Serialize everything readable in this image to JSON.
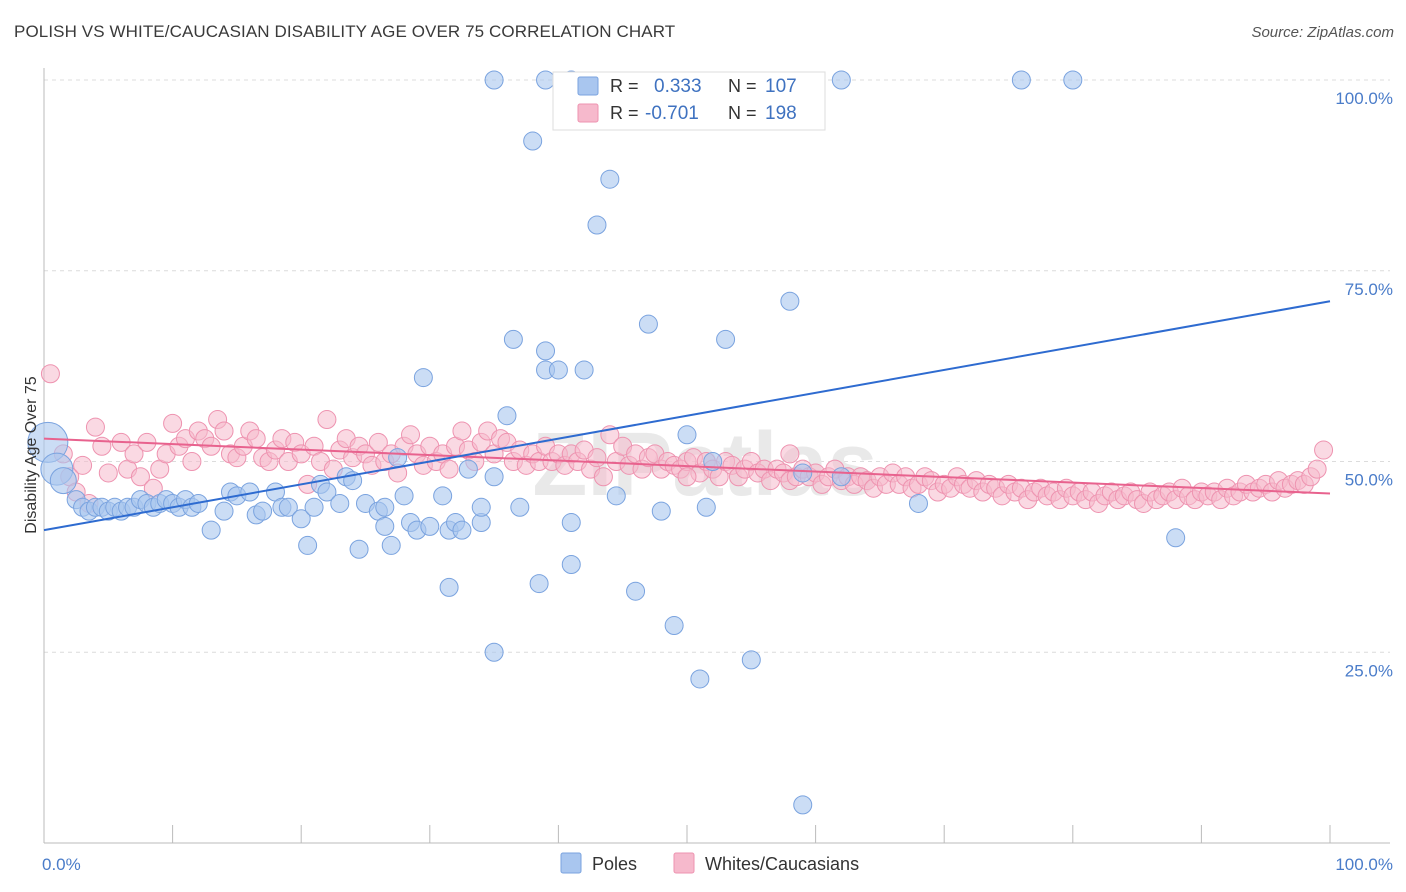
{
  "title": "POLISH VS WHITE/CAUCASIAN DISABILITY AGE OVER 75 CORRELATION CHART",
  "source": "Source: ZipAtlas.com",
  "watermark": "ZIPatlas",
  "colors": {
    "poles_fill": "#a9c6ef",
    "poles_stroke": "#7aa3df",
    "poles_line": "#2e6bd0",
    "whites_fill": "#f6b9cc",
    "whites_stroke": "#ee93b0",
    "whites_line": "#e8628e",
    "tick_text": "#4a7cc9",
    "grid": "#dcdcdc"
  },
  "legend": {
    "rows": [
      {
        "r_label": "R =",
        "r_value": "0.333",
        "n_label": "N =",
        "n_value": "107"
      },
      {
        "r_label": "R =",
        "r_value": "-0.701",
        "n_label": "N =",
        "n_value": "198"
      }
    ]
  },
  "chart_data": {
    "type": "scatter",
    "title": "POLISH VS WHITE/CAUCASIAN DISABILITY AGE OVER 75 CORRELATION CHART",
    "xlabel": "",
    "ylabel": "Disability Age Over 75",
    "xlim": [
      0,
      100
    ],
    "ylim": [
      0,
      100
    ],
    "x_tick_labels": [
      "0.0%",
      "100.0%"
    ],
    "y_tick_labels": [
      "100.0%",
      "75.0%",
      "50.0%",
      "25.0%"
    ],
    "y_ticks": [
      100,
      75,
      50,
      25
    ],
    "grid": true,
    "legend_position": "top-center",
    "series": [
      {
        "name": "Poles",
        "R": 0.333,
        "N": 107,
        "trend": {
          "x": [
            0,
            100
          ],
          "y": [
            41.0,
            71.0
          ]
        },
        "points": [
          [
            0.3,
            52.5
          ],
          [
            1,
            49
          ],
          [
            1.5,
            47.5
          ],
          [
            2.5,
            45
          ],
          [
            3,
            44
          ],
          [
            3.5,
            43.5
          ],
          [
            4,
            44
          ],
          [
            4.5,
            44
          ],
          [
            5,
            43.5
          ],
          [
            5.5,
            44
          ],
          [
            6,
            43.5
          ],
          [
            6.5,
            44
          ],
          [
            7,
            44
          ],
          [
            7.5,
            45
          ],
          [
            8,
            44.5
          ],
          [
            8.5,
            44
          ],
          [
            9,
            44.5
          ],
          [
            9.5,
            45
          ],
          [
            10,
            44.5
          ],
          [
            10.5,
            44
          ],
          [
            11,
            45
          ],
          [
            11.5,
            44
          ],
          [
            12,
            44.5
          ],
          [
            13,
            41
          ],
          [
            14,
            43.5
          ],
          [
            14.5,
            46
          ],
          [
            15,
            45.5
          ],
          [
            16,
            46
          ],
          [
            16.5,
            43
          ],
          [
            17,
            43.5
          ],
          [
            18,
            46
          ],
          [
            18.5,
            44
          ],
          [
            19,
            44
          ],
          [
            20,
            42.5
          ],
          [
            20.5,
            39
          ],
          [
            21,
            44
          ],
          [
            21.5,
            47
          ],
          [
            22,
            46
          ],
          [
            23,
            44.5
          ],
          [
            23.5,
            48
          ],
          [
            24,
            47.5
          ],
          [
            24.5,
            38.5
          ],
          [
            25,
            44.5
          ],
          [
            26,
            43.5
          ],
          [
            26.5,
            41.5
          ],
          [
            26.5,
            44
          ],
          [
            27,
            39
          ],
          [
            27.5,
            50.5
          ],
          [
            28,
            45.5
          ],
          [
            28.5,
            42
          ],
          [
            29,
            41
          ],
          [
            29.5,
            61
          ],
          [
            30,
            41.5
          ],
          [
            31,
            45.5
          ],
          [
            31.5,
            33.5
          ],
          [
            31.5,
            41
          ],
          [
            32,
            42
          ],
          [
            32.5,
            41
          ],
          [
            33,
            49
          ],
          [
            34,
            42
          ],
          [
            34,
            44
          ],
          [
            35,
            48
          ],
          [
            35,
            25
          ],
          [
            36,
            56
          ],
          [
            36.5,
            66
          ],
          [
            37,
            44
          ],
          [
            38,
            92
          ],
          [
            38.5,
            34
          ],
          [
            39,
            64.5
          ],
          [
            39,
            62
          ],
          [
            40,
            62
          ],
          [
            41,
            36.5
          ],
          [
            41,
            42
          ],
          [
            42,
            62
          ],
          [
            43,
            81
          ],
          [
            44,
            87
          ],
          [
            44.5,
            45.5
          ],
          [
            46,
            33
          ],
          [
            47,
            68
          ],
          [
            48,
            43.5
          ],
          [
            49,
            28.5
          ],
          [
            50,
            53.5
          ],
          [
            51,
            21.5
          ],
          [
            51.5,
            44
          ],
          [
            52,
            50
          ],
          [
            53,
            66
          ],
          [
            55,
            24
          ],
          [
            58,
            71
          ],
          [
            59,
            5
          ],
          [
            59,
            48.5
          ],
          [
            62,
            48
          ],
          [
            76,
            100
          ],
          [
            80,
            100
          ],
          [
            68,
            44.5
          ],
          [
            88,
            40
          ],
          [
            39,
            100
          ],
          [
            62,
            100
          ],
          [
            41,
            100
          ],
          [
            35,
            100
          ]
        ]
      },
      {
        "name": "Whites/Caucasians",
        "R": -0.701,
        "N": 198,
        "trend": {
          "x": [
            0,
            100
          ],
          "y": [
            53.0,
            45.8
          ]
        },
        "points": [
          [
            0.5,
            61.5
          ],
          [
            1.5,
            51
          ],
          [
            2,
            48
          ],
          [
            2.5,
            46
          ],
          [
            3,
            49.5
          ],
          [
            4,
            54.5
          ],
          [
            4.5,
            52
          ],
          [
            5,
            48.5
          ],
          [
            6,
            52.5
          ],
          [
            6.5,
            49
          ],
          [
            7,
            51
          ],
          [
            7.5,
            48
          ],
          [
            8,
            52.5
          ],
          [
            8.5,
            46.5
          ],
          [
            9,
            49
          ],
          [
            9.5,
            51
          ],
          [
            10,
            55
          ],
          [
            10.5,
            52
          ],
          [
            11,
            53
          ],
          [
            11.5,
            50
          ],
          [
            12,
            54
          ],
          [
            12.5,
            53
          ],
          [
            13,
            52
          ],
          [
            13.5,
            55.5
          ],
          [
            14,
            54
          ],
          [
            14.5,
            51
          ],
          [
            15,
            50.5
          ],
          [
            15.5,
            52
          ],
          [
            16,
            54
          ],
          [
            16.5,
            53
          ],
          [
            17,
            50.5
          ],
          [
            17.5,
            50
          ],
          [
            18,
            51.5
          ],
          [
            18.5,
            53
          ],
          [
            19,
            50
          ],
          [
            19.5,
            52.5
          ],
          [
            20,
            51
          ],
          [
            20.5,
            47
          ],
          [
            21,
            52
          ],
          [
            21.5,
            50
          ],
          [
            22,
            55.5
          ],
          [
            22.5,
            49
          ],
          [
            23,
            51.5
          ],
          [
            23.5,
            53
          ],
          [
            24,
            50.5
          ],
          [
            24.5,
            52
          ],
          [
            25,
            51
          ],
          [
            25.5,
            49.5
          ],
          [
            26,
            52.5
          ],
          [
            26.5,
            50
          ],
          [
            27,
            51
          ],
          [
            27.5,
            48.5
          ],
          [
            28,
            52
          ],
          [
            28.5,
            53.5
          ],
          [
            29,
            51
          ],
          [
            29.5,
            49.5
          ],
          [
            30,
            52
          ],
          [
            30.5,
            50
          ],
          [
            31,
            51
          ],
          [
            31.5,
            49
          ],
          [
            32,
            52
          ],
          [
            32.5,
            54
          ],
          [
            33,
            51.5
          ],
          [
            33.5,
            50
          ],
          [
            34,
            52.5
          ],
          [
            34.5,
            54
          ],
          [
            35,
            51
          ],
          [
            35.5,
            53
          ],
          [
            36,
            52.5
          ],
          [
            36.5,
            50
          ],
          [
            37,
            51.5
          ],
          [
            37.5,
            49.5
          ],
          [
            38,
            51
          ],
          [
            38.5,
            50
          ],
          [
            39,
            52
          ],
          [
            39.5,
            50
          ],
          [
            40,
            51
          ],
          [
            40.5,
            49.5
          ],
          [
            41,
            51
          ],
          [
            41.5,
            50
          ],
          [
            42,
            51.5
          ],
          [
            42.5,
            49
          ],
          [
            43,
            50.5
          ],
          [
            43.5,
            48
          ],
          [
            44,
            53.5
          ],
          [
            44.5,
            50
          ],
          [
            45,
            52
          ],
          [
            45.5,
            49.5
          ],
          [
            46,
            51
          ],
          [
            46.5,
            49
          ],
          [
            47,
            50.5
          ],
          [
            47.5,
            51
          ],
          [
            48,
            49
          ],
          [
            48.5,
            50
          ],
          [
            49,
            49.5
          ],
          [
            49.5,
            49
          ],
          [
            50,
            50
          ],
          [
            50.5,
            50.5
          ],
          [
            51,
            48.5
          ],
          [
            51.5,
            50
          ],
          [
            52,
            49
          ],
          [
            52.5,
            48
          ],
          [
            53,
            50
          ],
          [
            53.5,
            49.5
          ],
          [
            54,
            48
          ],
          [
            54.5,
            49
          ],
          [
            55,
            50
          ],
          [
            55.5,
            48.5
          ],
          [
            56,
            49
          ],
          [
            56.5,
            47.5
          ],
          [
            57,
            49
          ],
          [
            57.5,
            48.5
          ],
          [
            58,
            47.5
          ],
          [
            58.5,
            48
          ],
          [
            59,
            49
          ],
          [
            59.5,
            48
          ],
          [
            60,
            48.5
          ],
          [
            60.5,
            47
          ],
          [
            61,
            48
          ],
          [
            61.5,
            49
          ],
          [
            62,
            47.5
          ],
          [
            62.5,
            48
          ],
          [
            63,
            47
          ],
          [
            63.5,
            48
          ],
          [
            64,
            47.5
          ],
          [
            64.5,
            46.5
          ],
          [
            65,
            48
          ],
          [
            65.5,
            47
          ],
          [
            66,
            48.5
          ],
          [
            66.5,
            47
          ],
          [
            67,
            48
          ],
          [
            67.5,
            46.5
          ],
          [
            68,
            47
          ],
          [
            68.5,
            48
          ],
          [
            69,
            47.5
          ],
          [
            69.5,
            46
          ],
          [
            70,
            47
          ],
          [
            70.5,
            46.5
          ],
          [
            71,
            48
          ],
          [
            71.5,
            47
          ],
          [
            72,
            46.5
          ],
          [
            72.5,
            47.5
          ],
          [
            73,
            46
          ],
          [
            73.5,
            47
          ],
          [
            74,
            46.5
          ],
          [
            74.5,
            45.5
          ],
          [
            75,
            47
          ],
          [
            75.5,
            46
          ],
          [
            76,
            46.5
          ],
          [
            76.5,
            45
          ],
          [
            77,
            46
          ],
          [
            77.5,
            46.5
          ],
          [
            78,
            45.5
          ],
          [
            78.5,
            46
          ],
          [
            79,
            45
          ],
          [
            79.5,
            46.5
          ],
          [
            80,
            45.5
          ],
          [
            80.5,
            46
          ],
          [
            81,
            45
          ],
          [
            81.5,
            46
          ],
          [
            82,
            44.5
          ],
          [
            82.5,
            45.5
          ],
          [
            83,
            46
          ],
          [
            83.5,
            45
          ],
          [
            84,
            45.5
          ],
          [
            84.5,
            46
          ],
          [
            85,
            45
          ],
          [
            85.5,
            44.5
          ],
          [
            86,
            46
          ],
          [
            86.5,
            45
          ],
          [
            87,
            45.5
          ],
          [
            87.5,
            46
          ],
          [
            88,
            45
          ],
          [
            88.5,
            46.5
          ],
          [
            89,
            45.5
          ],
          [
            89.5,
            45
          ],
          [
            90,
            46
          ],
          [
            90.5,
            45.5
          ],
          [
            91,
            46
          ],
          [
            91.5,
            45
          ],
          [
            92,
            46.5
          ],
          [
            92.5,
            45.5
          ],
          [
            93,
            46
          ],
          [
            93.5,
            47
          ],
          [
            94,
            46
          ],
          [
            94.5,
            46.5
          ],
          [
            95,
            47
          ],
          [
            95.5,
            46
          ],
          [
            96,
            47.5
          ],
          [
            96.5,
            46.5
          ],
          [
            97,
            47
          ],
          [
            97.5,
            47.5
          ],
          [
            98,
            47
          ],
          [
            98.5,
            48
          ],
          [
            99,
            49
          ],
          [
            99.5,
            51.5
          ],
          [
            3.5,
            44.5
          ],
          [
            58,
            51
          ],
          [
            50,
            48
          ]
        ]
      }
    ]
  },
  "bottom_legend": [
    "Poles",
    "Whites/Caucasians"
  ]
}
